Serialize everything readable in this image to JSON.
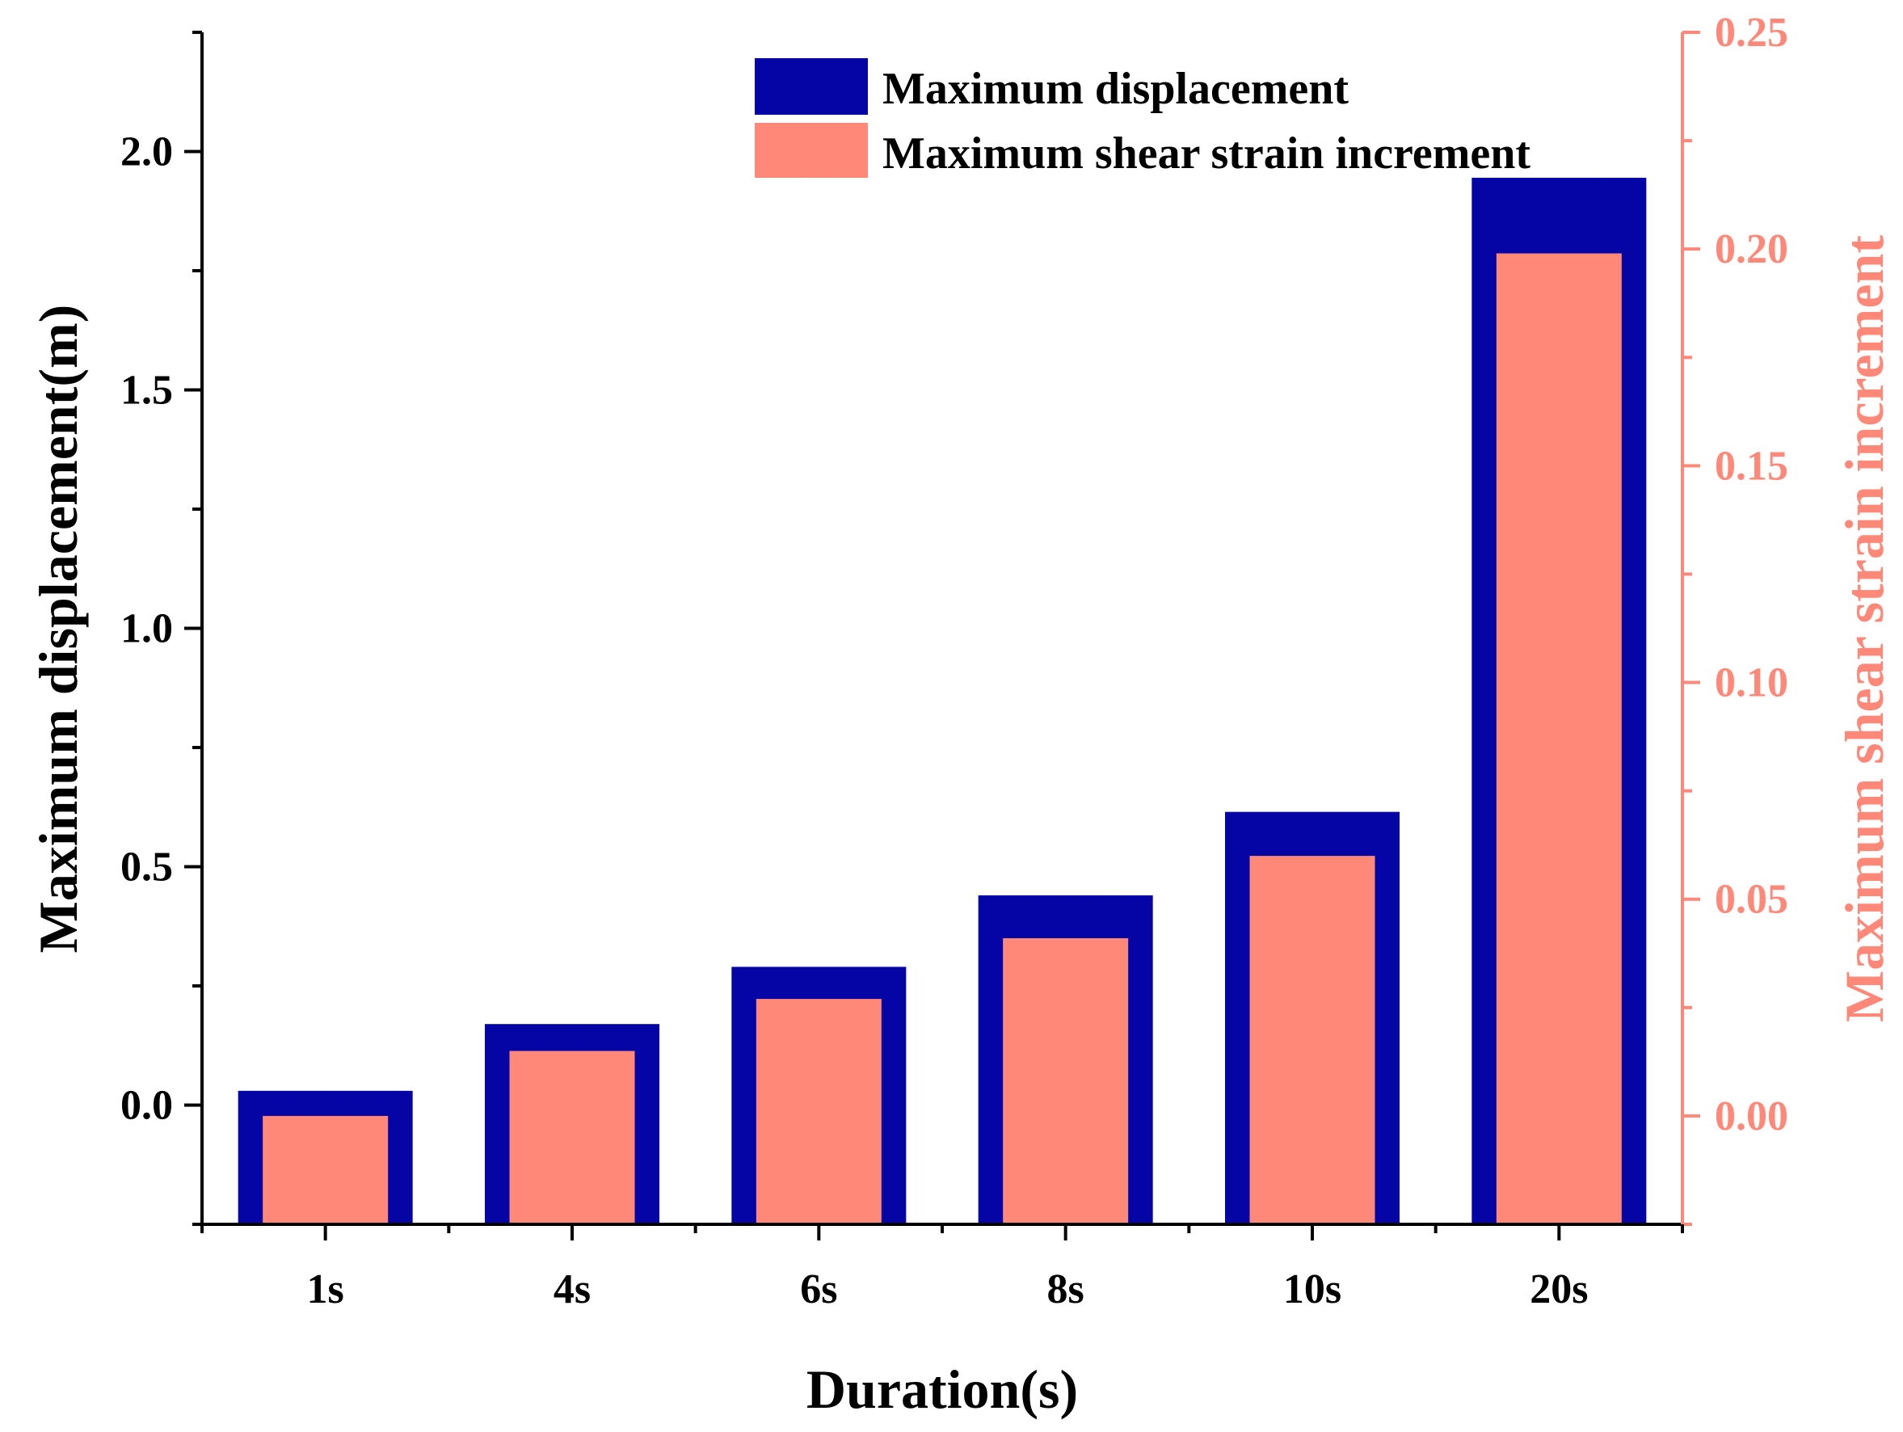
{
  "chart_data": {
    "type": "bar",
    "categories": [
      "1s",
      "4s",
      "6s",
      "8s",
      "10s",
      "20s"
    ],
    "xlabel": "Duration(s)",
    "series": [
      {
        "name": "Maximum displacement",
        "axis": "left",
        "color": "#0505A5",
        "values": [
          0.03,
          0.17,
          0.29,
          0.44,
          0.615,
          1.945
        ]
      },
      {
        "name": "Maximum shear strain increment",
        "axis": "right",
        "color": "#FF8878",
        "values": [
          0.0,
          0.015,
          0.027,
          0.041,
          0.06,
          0.199
        ]
      }
    ],
    "y_left": {
      "label": "Maximum displacement(m)",
      "range": [
        -0.25,
        2.25
      ],
      "ticks": [
        "0.0",
        "0.5",
        "1.0",
        "1.5",
        "2.0"
      ],
      "tick_values": [
        0.0,
        0.5,
        1.0,
        1.5,
        2.0
      ],
      "color": "#000000"
    },
    "y_right": {
      "label": "Maximum shear strain increment",
      "range": [
        -0.025,
        0.25
      ],
      "ticks": [
        "0.00",
        "0.05",
        "0.10",
        "0.15",
        "0.20",
        "0.25"
      ],
      "tick_values": [
        0.0,
        0.05,
        0.1,
        0.15,
        0.2,
        0.25
      ],
      "color": "#FF8878"
    },
    "legend_position": "top-right"
  }
}
